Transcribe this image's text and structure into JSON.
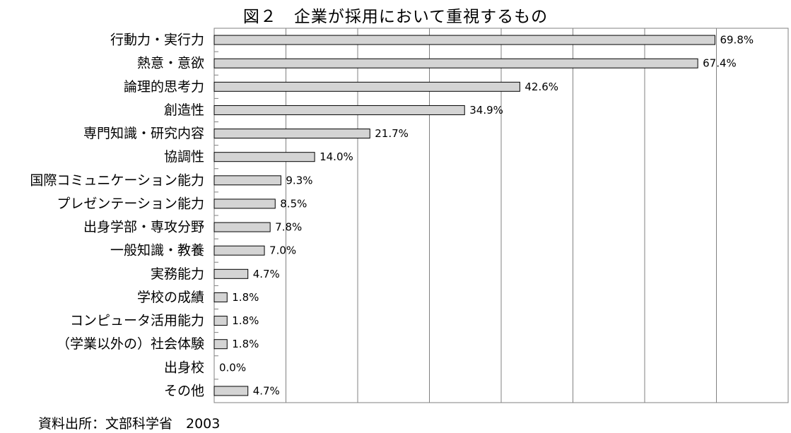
{
  "chart_data": {
    "type": "bar",
    "orientation": "horizontal",
    "title": "図２　企業が採用において重視するもの",
    "categories": [
      "行動力・実行力",
      "熱意・意欲",
      "論理的思考力",
      "創造性",
      "専門知識・研究内容",
      "協調性",
      "国際コミュニケーション能力",
      "プレゼンテーション能力",
      "出身学部・専攻分野",
      "一般知識・教養",
      "実務能力",
      "学校の成績",
      "コンピュータ活用能力",
      "（学業以外の）社会体験",
      "出身校",
      "その他"
    ],
    "values": [
      69.8,
      67.4,
      42.6,
      34.9,
      21.7,
      14.0,
      9.3,
      8.5,
      7.8,
      7.0,
      4.7,
      1.8,
      1.8,
      1.8,
      0.0,
      4.7
    ],
    "value_labels": [
      "69.8%",
      "67.4%",
      "42.6%",
      "34.9%",
      "21.7%",
      "14.0%",
      "9.3%",
      "8.5%",
      "7.8%",
      "7.0%",
      "4.7%",
      "1.8%",
      "1.8%",
      "1.8%",
      "0.0%",
      "4.7%"
    ],
    "xlim": [
      0,
      80
    ],
    "grid": true,
    "colors": {
      "bar_fill": "#d4d4d4",
      "bar_stroke": "#000000",
      "gridline": "#808080",
      "frame": "#808080"
    }
  },
  "source_note": "資料出所：文部科学省　2003"
}
